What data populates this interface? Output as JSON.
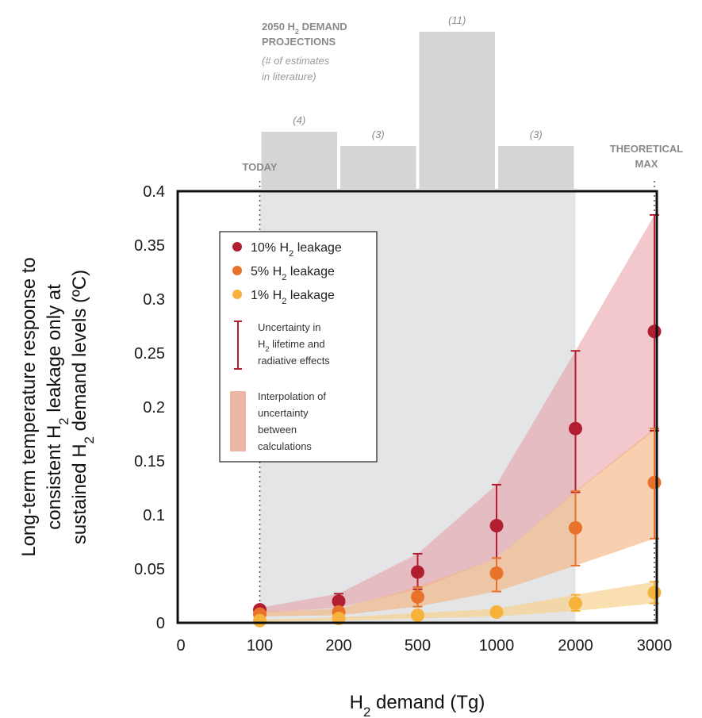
{
  "chart_data": {
    "type": "scatter",
    "categories": [
      "0",
      "100",
      "200",
      "500",
      "1000",
      "2000",
      "3000"
    ],
    "xlabel": "H2 demand (Tg)",
    "ylabel_lines": [
      "Long-term temperature response to",
      "consistent H2 leakage only at",
      "sustained H2 demand levels (ºC)"
    ],
    "yticks": [
      "0",
      "0.05",
      "0.1",
      "0.15",
      "0.2",
      "0.25",
      "0.3",
      "0.35",
      "0.4"
    ],
    "ylim": [
      0,
      0.4
    ],
    "series": [
      {
        "name": "10% H2 leakage",
        "color": "#b01e2f",
        "x": [
          "100",
          "200",
          "500",
          "1000",
          "2000",
          "3000"
        ],
        "values": [
          0.012,
          0.02,
          0.047,
          0.09,
          0.18,
          0.27
        ],
        "err_low": [
          0.009,
          0.014,
          0.031,
          0.06,
          0.121,
          0.178
        ],
        "err_high": [
          0.014,
          0.027,
          0.064,
          0.128,
          0.252,
          0.378
        ]
      },
      {
        "name": "5% H2 leakage",
        "color": "#e8722a",
        "x": [
          "100",
          "200",
          "500",
          "1000",
          "2000",
          "3000"
        ],
        "values": [
          0.008,
          0.01,
          0.024,
          0.046,
          0.088,
          0.13
        ],
        "err_low": [
          0.006,
          0.007,
          0.015,
          0.029,
          0.053,
          0.078
        ],
        "err_high": [
          0.01,
          0.013,
          0.033,
          0.06,
          0.122,
          0.18
        ]
      },
      {
        "name": "1% H2 leakage",
        "color": "#f6b23a",
        "x": [
          "100",
          "200",
          "500",
          "1000",
          "2000",
          "3000"
        ],
        "values": [
          0.002,
          0.004,
          0.007,
          0.01,
          0.018,
          0.028
        ],
        "err_low": [
          0.001,
          0.002,
          0.004,
          0.006,
          0.011,
          0.018
        ],
        "err_high": [
          0.003,
          0.005,
          0.009,
          0.013,
          0.026,
          0.038
        ]
      }
    ],
    "histogram": {
      "title_lines": [
        "2050 H",
        "PROJECTIONS"
      ],
      "title_sub": "2",
      "title_rest": " DEMAND",
      "note_lines": [
        "(# of estimates",
        "in literature)"
      ],
      "bins": [
        {
          "from": "100",
          "to": "200",
          "count": 4,
          "label": "(4)"
        },
        {
          "from": "200",
          "to": "500",
          "count": 3,
          "label": "(3)"
        },
        {
          "from": "500",
          "to": "1000",
          "count": 11,
          "label": "(11)"
        },
        {
          "from": "1000",
          "to": "2000",
          "count": 3,
          "label": "(3)"
        }
      ]
    },
    "markers": {
      "today": "TODAY",
      "theoretical": [
        "THEORETICAL",
        "MAX"
      ]
    },
    "legend": {
      "placement": "upper-left",
      "uncertainty_lines": [
        "Uncertainty in",
        "H2 lifetime and",
        "radiative effects"
      ],
      "interpolation_lines": [
        "Interpolation of",
        "uncertainty",
        "between",
        "calculations"
      ]
    }
  }
}
